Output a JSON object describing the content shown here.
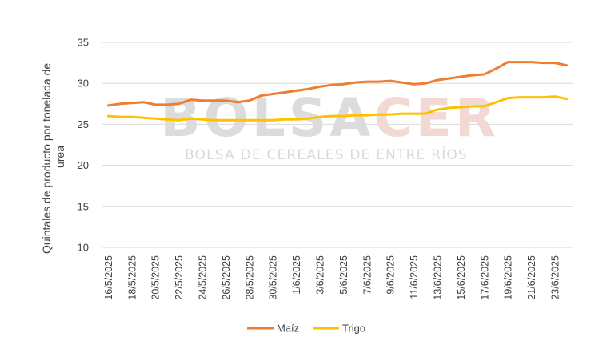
{
  "watermark": {
    "brand_part1": "BOLSA",
    "brand_part2": "CER",
    "tagline": "BOLSA DE CEREALES DE ENTRE RÍOS",
    "colors": {
      "part1": "#dcdcdc",
      "part2": "#f2d9d3",
      "tagline": "#d9d9d9"
    }
  },
  "chart_data": {
    "type": "line",
    "title": "",
    "xlabel": "",
    "ylabel_lines": [
      "Quintales de producto por tonelada de",
      "urea"
    ],
    "ylim": [
      10,
      35
    ],
    "yticks": [
      10,
      15,
      20,
      25,
      30,
      35
    ],
    "grid": true,
    "legend_position": "bottom",
    "x": [
      "16/5/2025",
      "17/5/2025",
      "18/5/2025",
      "19/5/2025",
      "20/5/2025",
      "21/5/2025",
      "22/5/2025",
      "23/5/2025",
      "24/5/2025",
      "25/5/2025",
      "26/5/2025",
      "27/5/2025",
      "28/5/2025",
      "29/5/2025",
      "30/5/2025",
      "31/5/2025",
      "1/6/2025",
      "2/6/2025",
      "3/6/2025",
      "4/6/2025",
      "5/6/2025",
      "6/6/2025",
      "7/6/2025",
      "8/6/2025",
      "9/6/2025",
      "10/6/2025",
      "11/6/2025",
      "12/6/2025",
      "13/6/2025",
      "14/6/2025",
      "15/6/2025",
      "16/6/2025",
      "17/6/2025",
      "18/6/2025",
      "19/6/2025",
      "20/6/2025",
      "21/6/2025",
      "22/6/2025",
      "23/6/2025",
      "24/6/2025"
    ],
    "x_tick_labels": [
      "16/5/2025",
      "18/5/2025",
      "20/5/2025",
      "22/5/2025",
      "24/5/2025",
      "26/5/2025",
      "28/5/2025",
      "30/5/2025",
      "1/6/2025",
      "3/6/2025",
      "5/6/2025",
      "7/6/2025",
      "9/6/2025",
      "11/6/2025",
      "13/6/2025",
      "15/6/2025",
      "17/6/2025",
      "19/6/2025",
      "21/6/2025",
      "23/6/2025"
    ],
    "series": [
      {
        "name": "Maíz",
        "color": "#ED7D31",
        "values": [
          27.3,
          27.5,
          27.6,
          27.7,
          27.4,
          27.4,
          27.5,
          28.0,
          27.9,
          27.9,
          27.9,
          27.7,
          27.9,
          28.5,
          28.7,
          28.9,
          29.1,
          29.3,
          29.6,
          29.8,
          29.9,
          30.1,
          30.2,
          30.2,
          30.3,
          30.1,
          29.9,
          30.0,
          30.4,
          30.6,
          30.8,
          31.0,
          31.1,
          31.8,
          32.6,
          32.6,
          32.6,
          32.5,
          32.5,
          32.2
        ]
      },
      {
        "name": "Trigo",
        "color": "#FFC000",
        "values": [
          26.0,
          25.9,
          25.9,
          25.8,
          25.7,
          25.6,
          25.5,
          25.7,
          25.6,
          25.5,
          25.5,
          25.5,
          25.5,
          25.5,
          25.5,
          25.6,
          25.6,
          25.7,
          25.9,
          26.0,
          26.0,
          26.1,
          26.1,
          26.2,
          26.2,
          26.3,
          26.3,
          26.3,
          26.8,
          27.0,
          27.1,
          27.2,
          27.2,
          27.7,
          28.2,
          28.3,
          28.3,
          28.3,
          28.4,
          28.1
        ]
      }
    ]
  }
}
